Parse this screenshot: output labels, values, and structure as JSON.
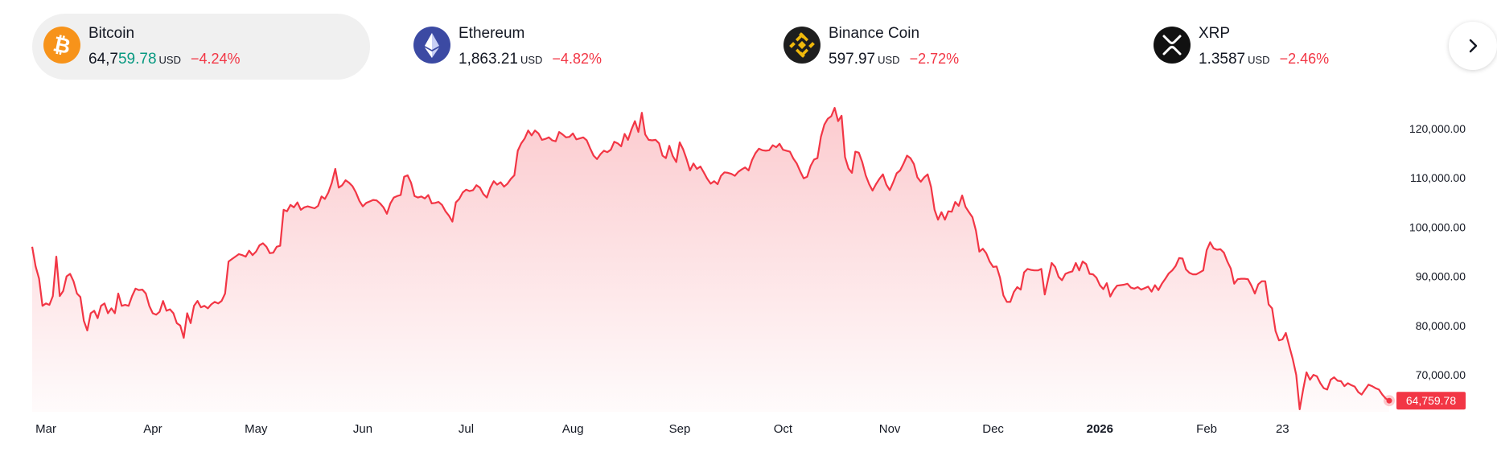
{
  "tickers": [
    {
      "name": "Bitcoin",
      "price_prefix": "64,7",
      "price_highlight": "59.78",
      "currency": "USD",
      "change": "−4.24%",
      "logo_icon": "bitcoin-icon",
      "logo_color": "#f7931a"
    },
    {
      "name": "Ethereum",
      "price": "1,863.21",
      "currency": "USD",
      "change": "−4.82%",
      "logo_icon": "ethereum-icon",
      "logo_color": "#3c4aa3"
    },
    {
      "name": "Binance Coin",
      "price": "597.97",
      "currency": "USD",
      "change": "−2.72%",
      "logo_icon": "binance-icon",
      "logo_color": "#1e1e1e"
    },
    {
      "name": "XRP",
      "price": "1.3587",
      "currency": "USD",
      "change": "−2.46%",
      "logo_icon": "xrp-icon",
      "logo_color": "#111111"
    }
  ],
  "next_button_icon": "chevron-right-icon",
  "colors": {
    "line": "#f23645",
    "up": "#089981",
    "down": "#f23645"
  },
  "chart_data": {
    "type": "area",
    "series": [
      {
        "values": [
          96000,
          92000,
          89500,
          84000,
          84500,
          84200,
          86000,
          94000,
          86000,
          87000,
          90000,
          90500,
          89000,
          86500,
          85800,
          81000,
          79000,
          82500,
          83000,
          81500,
          84000,
          84500,
          82500,
          83500,
          82500,
          86500,
          84000,
          84200,
          84000,
          86000,
          87500,
          87200,
          87300,
          86500,
          84000,
          82500,
          82200,
          82800,
          85000,
          83000,
          83300,
          82500,
          80500,
          80000,
          77500,
          82500,
          80500,
          84000,
          85000,
          83700,
          84000,
          83500,
          84300,
          84800,
          84500,
          85000,
          86500,
          93000,
          93500,
          94000,
          94500,
          94300,
          94000,
          95200,
          94300,
          95000,
          96300,
          96700,
          96000,
          94700,
          94800,
          96000,
          96200,
          103500,
          103200,
          104500,
          104000,
          105000,
          103500,
          104000,
          104200,
          104000,
          103800,
          104300,
          106200,
          105700,
          107000,
          109000,
          111800,
          108000,
          108500,
          109500,
          109000,
          108300,
          107000,
          105300,
          104200,
          104900,
          105200,
          105500,
          105400,
          104800,
          104000,
          102700,
          104800,
          106000,
          106300,
          106500,
          110200,
          110500,
          109000,
          106300,
          106000,
          106200,
          105800,
          106500,
          104800,
          104900,
          105100,
          104500,
          103200,
          102300,
          101100,
          105000,
          105700,
          107000,
          107600,
          107300,
          107500,
          108500,
          108000,
          106700,
          106000,
          108000,
          109300,
          108600,
          109100,
          108200,
          108800,
          109800,
          110500,
          115500,
          117000,
          118000,
          119600,
          118600,
          119600,
          119000,
          117700,
          117900,
          118200,
          117600,
          117400,
          119300,
          118800,
          118200,
          118300,
          119000,
          117800,
          118000,
          118200,
          117600,
          116000,
          114500,
          113800,
          114800,
          115500,
          115200,
          115700,
          117300,
          117000,
          116400,
          118900,
          117700,
          119800,
          121500,
          119300,
          123200,
          118800,
          117700,
          117600,
          117700,
          117000,
          114500,
          114000,
          116500,
          114400,
          113200,
          117200,
          115800,
          113800,
          111500,
          112900,
          111800,
          112300,
          111100,
          109800,
          108800,
          109300,
          108700,
          110400,
          111100,
          111000,
          110800,
          110400,
          111200,
          111700,
          112100,
          111500,
          113600,
          115000,
          115900,
          115600,
          115500,
          115600,
          116600,
          116200,
          116900,
          115700,
          115500,
          115300,
          113900,
          112900,
          111300,
          109900,
          110200,
          112400,
          113700,
          114000,
          118300,
          120800,
          122000,
          122500,
          124200,
          121500,
          122600,
          114200,
          111900,
          111000,
          115300,
          115100,
          113200,
          110500,
          108700,
          107400,
          108700,
          109800,
          110700,
          108600,
          107500,
          109100,
          110900,
          111500,
          112900,
          114500,
          114000,
          112800,
          110100,
          109200,
          110100,
          110700,
          108100,
          103500,
          101500,
          103000,
          101500,
          103200,
          103100,
          105100,
          104300,
          106400,
          104100,
          103000,
          102000,
          99300,
          95000,
          95600,
          94700,
          93000,
          91900,
          92000,
          89700,
          86100,
          84800,
          84800,
          86800,
          87800,
          87300,
          90800,
          91500,
          91300,
          91200,
          91200,
          91500,
          86300,
          89500,
          92700,
          91900,
          89900,
          89200,
          90500,
          90800,
          91000,
          92700,
          91200,
          93000,
          92500,
          90500,
          90400,
          89700,
          88200,
          87400,
          88600,
          85900,
          87200,
          88100,
          88200,
          88300,
          88500,
          87700,
          87500,
          87800,
          87300,
          87600,
          87900,
          86900,
          88200,
          87200,
          88500,
          89500,
          90600,
          91200,
          92100,
          93700,
          93600,
          91400,
          90700,
          90400,
          90400,
          90800,
          91200,
          95300,
          96900,
          95700,
          95400,
          95500,
          94800,
          93000,
          91600,
          88500,
          89400,
          89500,
          89500,
          89400,
          88100,
          86500,
          88400,
          89000,
          89000,
          84300,
          83500,
          78900,
          77000,
          77200,
          78500,
          75800,
          73200,
          70000,
          63000,
          67000,
          70500,
          69000,
          70000,
          69700,
          68300,
          67300,
          67000,
          69000,
          69500,
          68800,
          68700,
          67700,
          68300,
          67900,
          67600,
          66500,
          66000,
          67000,
          68000,
          67700,
          67300,
          67000,
          66000,
          65200,
          64759.78
        ]
      }
    ],
    "x_labels": [
      {
        "label": "Mar",
        "bold": false,
        "idx": 4
      },
      {
        "label": "Apr",
        "bold": false,
        "idx": 35
      },
      {
        "label": "May",
        "bold": false,
        "idx": 65
      },
      {
        "label": "Jun",
        "bold": false,
        "idx": 96
      },
      {
        "label": "Jul",
        "bold": false,
        "idx": 126
      },
      {
        "label": "Aug",
        "bold": false,
        "idx": 157
      },
      {
        "label": "Sep",
        "bold": false,
        "idx": 188
      },
      {
        "label": "Oct",
        "bold": false,
        "idx": 218
      },
      {
        "label": "Nov",
        "bold": false,
        "idx": 249
      },
      {
        "label": "Dec",
        "bold": false,
        "idx": 279
      },
      {
        "label": "2026",
        "bold": true,
        "idx": 310
      },
      {
        "label": "Feb",
        "bold": false,
        "idx": 341
      },
      {
        "label": "23",
        "bold": false,
        "idx": 363
      }
    ],
    "y_ticks": [
      120000,
      110000,
      100000,
      90000,
      80000,
      70000
    ],
    "y_tick_labels": [
      "120,000.00",
      "110,000.00",
      "100,000.00",
      "90,000.00",
      "80,000.00",
      "70,000.00"
    ],
    "ylim": [
      62500,
      126500
    ],
    "last_value_label": "64,759.78",
    "y_axis_position": "right",
    "grid": false
  }
}
